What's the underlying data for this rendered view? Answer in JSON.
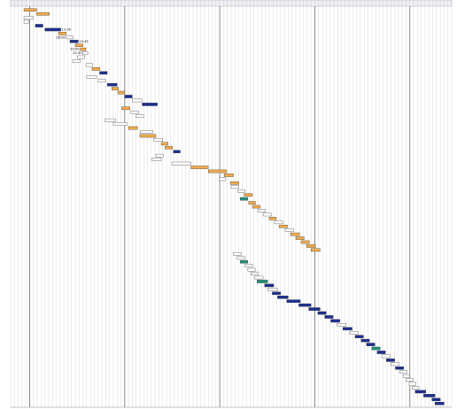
{
  "chart_data": {
    "type": "gantt",
    "title": "",
    "xlabel": "",
    "ylabel": "",
    "grid": true,
    "legend": "none",
    "x_axis": {
      "unit": "day",
      "range": [
        0,
        116
      ],
      "tick_labels_legible": false,
      "major_divisions_at": [
        5,
        30,
        55,
        80,
        105
      ]
    },
    "colors": {
      "orange": "#f0aa4b",
      "navy": "#1c2f8e",
      "white": "#ffffff",
      "teal": "#1f8f7a",
      "gridline": "#d4d4d4",
      "major_gridline": "#7c7c7c",
      "outline": "#333333"
    },
    "tasks": [
      {
        "start": 3.5,
        "end": 6.8,
        "start_label": "",
        "end_label": "",
        "color": "orange"
      },
      {
        "start": 6.8,
        "end": 10.2,
        "start_label": "",
        "end_label": "",
        "color": "orange"
      },
      {
        "start": 3.5,
        "end": 6.0,
        "start_label": "",
        "end_label": "",
        "color": "white"
      },
      {
        "start": 3.5,
        "end": 4.8,
        "start_label": "",
        "end_label": "",
        "color": "white"
      },
      {
        "start": 6.5,
        "end": 8.5,
        "start_label": "",
        "end_label": "",
        "color": "navy"
      },
      {
        "start": 9.0,
        "end": 13.2,
        "start_label": "",
        "end_label": "11:00",
        "color": "navy"
      },
      {
        "start": 12.6,
        "end": 14.6,
        "start_label": "",
        "end_label": "",
        "color": "orange"
      },
      {
        "start": 14.6,
        "end": 16.4,
        "start_label": "08:00",
        "end_label": "",
        "color": "white"
      },
      {
        "start": 15.6,
        "end": 17.8,
        "start_label": "",
        "end_label": "15:45",
        "color": "navy"
      },
      {
        "start": 17.0,
        "end": 19.0,
        "start_label": "",
        "end_label": "",
        "color": "orange"
      },
      {
        "start": 18.3,
        "end": 19.8,
        "start_label": "20:00",
        "end_label": "",
        "color": "orange"
      },
      {
        "start": 19.0,
        "end": 20.3,
        "start_label": "22:30",
        "end_label": "",
        "color": "white"
      },
      {
        "start": 17.6,
        "end": 19.5,
        "start_label": "",
        "end_label": "",
        "color": "white"
      },
      {
        "start": 16.3,
        "end": 18.3,
        "start_label": "",
        "end_label": "",
        "color": "white"
      },
      {
        "start": 19.8,
        "end": 21.6,
        "start_label": "",
        "end_label": "",
        "color": "white"
      },
      {
        "start": 21.4,
        "end": 23.5,
        "start_label": "",
        "end_label": "",
        "color": "orange"
      },
      {
        "start": 23.4,
        "end": 25.4,
        "start_label": "",
        "end_label": "",
        "color": "navy"
      },
      {
        "start": 20.0,
        "end": 22.6,
        "start_label": "",
        "end_label": "",
        "color": "white"
      },
      {
        "start": 23.0,
        "end": 25.0,
        "start_label": "",
        "end_label": "",
        "color": "white"
      },
      {
        "start": 25.4,
        "end": 28.0,
        "start_label": "",
        "end_label": "",
        "color": "navy"
      },
      {
        "start": 26.6,
        "end": 28.4,
        "start_label": "",
        "end_label": "",
        "color": "orange"
      },
      {
        "start": 28.2,
        "end": 30.0,
        "start_label": "",
        "end_label": "",
        "color": "orange"
      },
      {
        "start": 30.0,
        "end": 32.0,
        "start_label": "",
        "end_label": "",
        "color": "navy"
      },
      {
        "start": 32.0,
        "end": 34.6,
        "start_label": "",
        "end_label": "",
        "color": "white"
      },
      {
        "start": 34.6,
        "end": 38.6,
        "start_label": "",
        "end_label": "",
        "color": "navy"
      },
      {
        "start": 29.2,
        "end": 31.4,
        "start_label": "",
        "end_label": "",
        "color": "orange"
      },
      {
        "start": 31.6,
        "end": 33.6,
        "start_label": "",
        "end_label": "",
        "color": "white"
      },
      {
        "start": 33.0,
        "end": 35.0,
        "start_label": "",
        "end_label": "",
        "color": "white"
      },
      {
        "start": 24.8,
        "end": 27.6,
        "start_label": "",
        "end_label": "",
        "color": "white"
      },
      {
        "start": 27.0,
        "end": 30.6,
        "start_label": "",
        "end_label": "",
        "color": "white"
      },
      {
        "start": 31.0,
        "end": 33.4,
        "start_label": "",
        "end_label": "",
        "color": "orange"
      },
      {
        "start": 34.2,
        "end": 37.4,
        "start_label": "",
        "end_label": "",
        "color": "white"
      },
      {
        "start": 34.0,
        "end": 38.2,
        "start_label": "",
        "end_label": "",
        "color": "orange"
      },
      {
        "start": 37.6,
        "end": 40.0,
        "start_label": "",
        "end_label": "",
        "color": "white"
      },
      {
        "start": 39.6,
        "end": 41.4,
        "start_label": "",
        "end_label": "",
        "color": "orange"
      },
      {
        "start": 40.6,
        "end": 42.6,
        "start_label": "",
        "end_label": "",
        "color": "orange"
      },
      {
        "start": 42.8,
        "end": 44.6,
        "start_label": "",
        "end_label": "",
        "color": "navy"
      },
      {
        "start": 38.2,
        "end": 40.2,
        "start_label": "",
        "end_label": "",
        "color": "white"
      },
      {
        "start": 37.2,
        "end": 39.6,
        "start_label": "",
        "end_label": "",
        "color": "white"
      },
      {
        "start": 42.4,
        "end": 47.4,
        "start_label": "",
        "end_label": "",
        "color": "white"
      },
      {
        "start": 47.4,
        "end": 52.0,
        "start_label": "",
        "end_label": "",
        "color": "orange"
      },
      {
        "start": 52.0,
        "end": 56.8,
        "start_label": "",
        "end_label": "",
        "color": "orange"
      },
      {
        "start": 56.2,
        "end": 58.6,
        "start_label": "",
        "end_label": "",
        "color": "orange"
      },
      {
        "start": 54.8,
        "end": 56.6,
        "start_label": "",
        "end_label": "",
        "color": "white"
      },
      {
        "start": 57.8,
        "end": 60.0,
        "start_label": "",
        "end_label": "",
        "color": "orange"
      },
      {
        "start": 58.0,
        "end": 60.0,
        "start_label": "",
        "end_label": "",
        "color": "white"
      },
      {
        "start": 59.8,
        "end": 61.6,
        "start_label": "",
        "end_label": "",
        "color": "white"
      },
      {
        "start": 61.4,
        "end": 63.6,
        "start_label": "",
        "end_label": "",
        "color": "orange"
      },
      {
        "start": 60.4,
        "end": 62.4,
        "start_label": "",
        "end_label": "",
        "color": "teal"
      },
      {
        "start": 62.6,
        "end": 64.4,
        "start_label": "",
        "end_label": "",
        "color": "orange"
      },
      {
        "start": 63.6,
        "end": 65.6,
        "start_label": "",
        "end_label": "",
        "color": "orange"
      },
      {
        "start": 65.0,
        "end": 67.0,
        "start_label": "",
        "end_label": "",
        "color": "white"
      },
      {
        "start": 66.4,
        "end": 68.6,
        "start_label": "",
        "end_label": "",
        "color": "white"
      },
      {
        "start": 68.0,
        "end": 69.8,
        "start_label": "",
        "end_label": "",
        "color": "orange"
      },
      {
        "start": 69.4,
        "end": 71.6,
        "start_label": "",
        "end_label": "",
        "color": "white"
      },
      {
        "start": 70.6,
        "end": 72.8,
        "start_label": "",
        "end_label": "",
        "color": "orange"
      },
      {
        "start": 72.2,
        "end": 74.4,
        "start_label": "",
        "end_label": "",
        "color": "white"
      },
      {
        "start": 73.6,
        "end": 76.0,
        "start_label": "",
        "end_label": "",
        "color": "orange"
      },
      {
        "start": 75.0,
        "end": 77.2,
        "start_label": "",
        "end_label": "",
        "color": "orange"
      },
      {
        "start": 76.4,
        "end": 78.6,
        "start_label": "",
        "end_label": "",
        "color": "orange"
      },
      {
        "start": 77.8,
        "end": 80.2,
        "start_label": "",
        "end_label": "",
        "color": "orange"
      },
      {
        "start": 79.0,
        "end": 81.4,
        "start_label": "",
        "end_label": "",
        "color": "orange"
      },
      {
        "start": 58.6,
        "end": 60.6,
        "start_label": "",
        "end_label": "",
        "color": "white"
      },
      {
        "start": 59.6,
        "end": 61.6,
        "start_label": "",
        "end_label": "",
        "color": "white"
      },
      {
        "start": 60.4,
        "end": 62.4,
        "start_label": "",
        "end_label": "",
        "color": "teal"
      },
      {
        "start": 61.6,
        "end": 63.6,
        "start_label": "",
        "end_label": "",
        "color": "white"
      },
      {
        "start": 62.4,
        "end": 64.4,
        "start_label": "",
        "end_label": "",
        "color": "white"
      },
      {
        "start": 63.2,
        "end": 65.2,
        "start_label": "",
        "end_label": "",
        "color": "white"
      },
      {
        "start": 64.2,
        "end": 66.4,
        "start_label": "",
        "end_label": "",
        "color": "white"
      },
      {
        "start": 64.8,
        "end": 67.6,
        "start_label": "",
        "end_label": "",
        "color": "teal"
      },
      {
        "start": 66.8,
        "end": 69.2,
        "start_label": "",
        "end_label": "",
        "color": "navy"
      },
      {
        "start": 67.6,
        "end": 70.2,
        "start_label": "",
        "end_label": "",
        "color": "white"
      },
      {
        "start": 68.8,
        "end": 71.0,
        "start_label": "",
        "end_label": "",
        "color": "navy"
      },
      {
        "start": 70.2,
        "end": 73.0,
        "start_label": "",
        "end_label": "",
        "color": "navy"
      },
      {
        "start": 72.6,
        "end": 76.2,
        "start_label": "",
        "end_label": "",
        "color": "navy"
      },
      {
        "start": 75.8,
        "end": 79.0,
        "start_label": "",
        "end_label": "",
        "color": "navy"
      },
      {
        "start": 78.4,
        "end": 81.4,
        "start_label": "",
        "end_label": "",
        "color": "navy"
      },
      {
        "start": 80.8,
        "end": 83.0,
        "start_label": "",
        "end_label": "",
        "color": "navy"
      },
      {
        "start": 82.6,
        "end": 84.8,
        "start_label": "",
        "end_label": "",
        "color": "navy"
      },
      {
        "start": 84.2,
        "end": 86.6,
        "start_label": "",
        "end_label": "",
        "color": "navy"
      },
      {
        "start": 85.8,
        "end": 88.2,
        "start_label": "",
        "end_label": "",
        "color": "white"
      },
      {
        "start": 87.4,
        "end": 89.8,
        "start_label": "",
        "end_label": "",
        "color": "navy"
      },
      {
        "start": 89.2,
        "end": 91.4,
        "start_label": "",
        "end_label": "",
        "color": "white"
      },
      {
        "start": 90.6,
        "end": 92.8,
        "start_label": "",
        "end_label": "",
        "color": "navy"
      },
      {
        "start": 92.2,
        "end": 94.4,
        "start_label": "",
        "end_label": "",
        "color": "navy"
      },
      {
        "start": 93.6,
        "end": 95.8,
        "start_label": "",
        "end_label": "",
        "color": "navy"
      },
      {
        "start": 95.0,
        "end": 97.2,
        "start_label": "",
        "end_label": "",
        "color": "teal"
      },
      {
        "start": 96.4,
        "end": 98.6,
        "start_label": "",
        "end_label": "",
        "color": "navy"
      },
      {
        "start": 97.6,
        "end": 99.8,
        "start_label": "",
        "end_label": "",
        "color": "white"
      },
      {
        "start": 98.8,
        "end": 101.0,
        "start_label": "",
        "end_label": "",
        "color": "navy"
      },
      {
        "start": 100.0,
        "end": 102.2,
        "start_label": "",
        "end_label": "",
        "color": "white"
      },
      {
        "start": 101.2,
        "end": 103.4,
        "start_label": "",
        "end_label": "",
        "color": "navy"
      },
      {
        "start": 102.4,
        "end": 104.2,
        "start_label": "",
        "end_label": "",
        "color": "white"
      },
      {
        "start": 103.2,
        "end": 105.0,
        "start_label": "",
        "end_label": "",
        "color": "white"
      },
      {
        "start": 104.0,
        "end": 105.8,
        "start_label": "",
        "end_label": "",
        "color": "white"
      },
      {
        "start": 104.8,
        "end": 106.6,
        "start_label": "",
        "end_label": "",
        "color": "white"
      },
      {
        "start": 105.6,
        "end": 107.4,
        "start_label": "",
        "end_label": "",
        "color": "white"
      },
      {
        "start": 106.4,
        "end": 109.2,
        "start_label": "",
        "end_label": "",
        "color": "navy"
      },
      {
        "start": 108.6,
        "end": 111.6,
        "start_label": "",
        "end_label": "",
        "color": "navy"
      },
      {
        "start": 110.8,
        "end": 113.0,
        "start_label": "",
        "end_label": "",
        "color": "navy"
      },
      {
        "start": 111.6,
        "end": 114.0,
        "start_label": "",
        "end_label": "",
        "color": "navy"
      }
    ]
  }
}
